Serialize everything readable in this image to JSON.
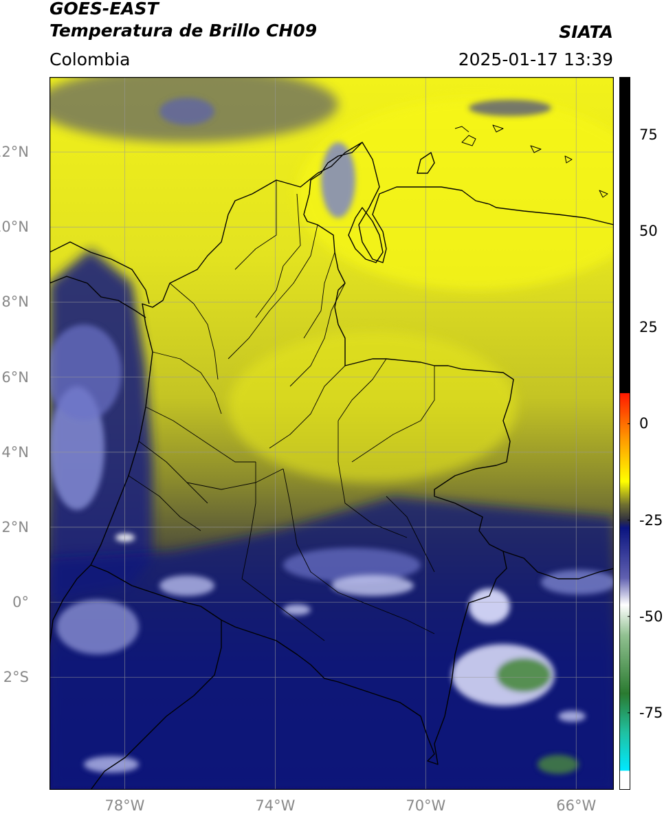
{
  "header": {
    "line1": "GOES-EAST",
    "line2": "Temperatura de Brillo CH09",
    "agency": "SIATA",
    "region": "Colombia",
    "datetime": "2025-01-17 13:39"
  },
  "map": {
    "lat_range": [
      -5.0,
      14.0
    ],
    "lon_range": [
      -80.0,
      -65.0
    ],
    "lat_ticks": [
      {
        "value": 12,
        "label": "12°N"
      },
      {
        "value": 10,
        "label": "10°N"
      },
      {
        "value": 8,
        "label": "8°N"
      },
      {
        "value": 6,
        "label": "6°N"
      },
      {
        "value": 4,
        "label": "4°N"
      },
      {
        "value": 2,
        "label": "2°N"
      },
      {
        "value": 0,
        "label": "0°"
      },
      {
        "value": -2,
        "label": "2°S"
      }
    ],
    "lon_ticks": [
      {
        "value": -78,
        "label": "78°W"
      },
      {
        "value": -74,
        "label": "74°W"
      },
      {
        "value": -70,
        "label": "70°W"
      },
      {
        "value": -66,
        "label": "66°W"
      }
    ],
    "gridlines": true
  },
  "colorbar": {
    "range": [
      -95,
      90
    ],
    "ticks": [
      {
        "value": 75,
        "label": "75"
      },
      {
        "value": 50,
        "label": "50"
      },
      {
        "value": 25,
        "label": "25"
      },
      {
        "value": 0,
        "label": "0"
      },
      {
        "value": -25,
        "label": "-25"
      },
      {
        "value": -50,
        "label": "-50"
      },
      {
        "value": -75,
        "label": "-75"
      }
    ],
    "stops": [
      {
        "value": 90,
        "color": "#000000"
      },
      {
        "value": 8,
        "color": "#000000"
      },
      {
        "value": 7.9,
        "color": "#ff1a00"
      },
      {
        "value": -4,
        "color": "#ff9a00"
      },
      {
        "value": -15,
        "color": "#ffff00"
      },
      {
        "value": -21,
        "color": "#707030"
      },
      {
        "value": -25,
        "color": "#303040"
      },
      {
        "value": -27,
        "color": "#0a1480"
      },
      {
        "value": -40,
        "color": "#6060b0"
      },
      {
        "value": -47,
        "color": "#ffffff"
      },
      {
        "value": -55,
        "color": "#90c090"
      },
      {
        "value": -70,
        "color": "#2a7a30"
      },
      {
        "value": -80,
        "color": "#20c0a0"
      },
      {
        "value": -90,
        "color": "#00e8ff"
      },
      {
        "value": -90.1,
        "color": "#ffffff"
      },
      {
        "value": -95,
        "color": "#ffffff"
      }
    ]
  }
}
